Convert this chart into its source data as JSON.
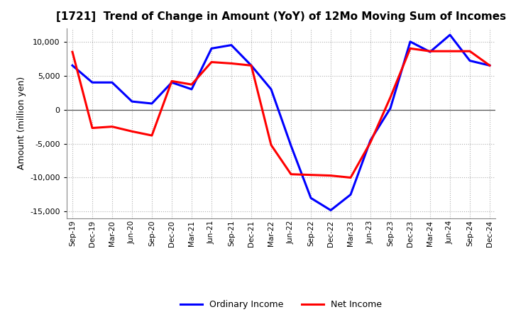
{
  "title": "[1721]  Trend of Change in Amount (YoY) of 12Mo Moving Sum of Incomes",
  "ylabel": "Amount (million yen)",
  "x_labels": [
    "Sep-19",
    "Dec-19",
    "Mar-20",
    "Jun-20",
    "Sep-20",
    "Dec-20",
    "Mar-21",
    "Jun-21",
    "Sep-21",
    "Dec-21",
    "Mar-22",
    "Jun-22",
    "Sep-22",
    "Dec-22",
    "Mar-23",
    "Jun-23",
    "Sep-23",
    "Dec-23",
    "Mar-24",
    "Jun-24",
    "Sep-24",
    "Dec-24"
  ],
  "ordinary_income": [
    6500,
    4000,
    4000,
    1200,
    900,
    4000,
    3000,
    9000,
    9500,
    6500,
    3000,
    -5300,
    -13000,
    -14800,
    -12500,
    -4500,
    200,
    10000,
    8500,
    11000,
    7200,
    6500
  ],
  "net_income": [
    8500,
    -2700,
    -2500,
    -3200,
    -3800,
    4200,
    3700,
    7000,
    6800,
    6500,
    -5200,
    -9500,
    -9600,
    -9700,
    -10000,
    -4800,
    1800,
    9000,
    8600,
    8600,
    8600,
    6500
  ],
  "ordinary_color": "#0000ff",
  "net_color": "#ff0000",
  "ylim": [
    -16000,
    12000
  ],
  "yticks": [
    -15000,
    -10000,
    -5000,
    0,
    5000,
    10000
  ],
  "background_color": "#ffffff",
  "grid_color": "#b0b0b0"
}
